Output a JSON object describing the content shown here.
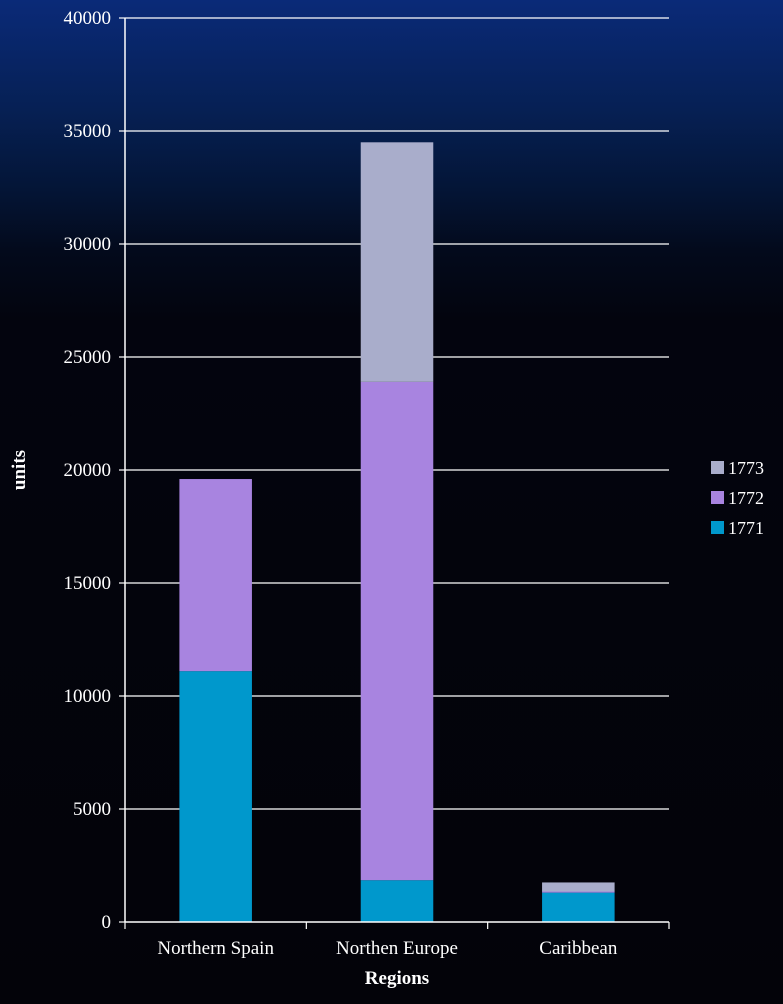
{
  "chart_data": {
    "type": "bar",
    "stacked": true,
    "categories": [
      "Northern Spain",
      "Northen Europe",
      "Caribbean"
    ],
    "series": [
      {
        "name": "1771",
        "values": [
          11100,
          1850,
          1300
        ],
        "color": "#0098cc"
      },
      {
        "name": "1772",
        "values": [
          8500,
          22050,
          50
        ],
        "color": "#a884e0"
      },
      {
        "name": "1773",
        "values": [
          0,
          10600,
          400
        ],
        "color": "#a9adcb"
      }
    ],
    "xlabel": "Regions",
    "ylabel": "units",
    "ylim": [
      0,
      40000
    ],
    "yticks": [
      "0",
      "5000",
      "10000",
      "15000",
      "20000",
      "25000",
      "30000",
      "35000",
      "40000"
    ],
    "grid": true,
    "legend": "right"
  }
}
